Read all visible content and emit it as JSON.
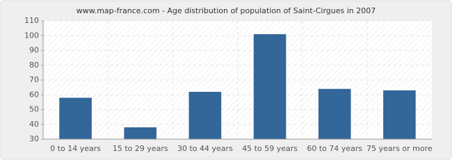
{
  "chart_data": {
    "type": "bar",
    "title": "www.map-france.com - Age distribution of population of Saint-Cirgues in 2007",
    "categories": [
      "0 to 14 years",
      "15 to 29 years",
      "30 to 44 years",
      "45 to 59 years",
      "60 to 74 years",
      "75 years or more"
    ],
    "values": [
      58,
      38,
      62,
      101,
      64,
      63
    ],
    "color": "#336699",
    "ylim": [
      30,
      110
    ],
    "yticks": [
      30,
      40,
      50,
      60,
      70,
      80,
      90,
      100,
      110
    ],
    "grid": true
  }
}
